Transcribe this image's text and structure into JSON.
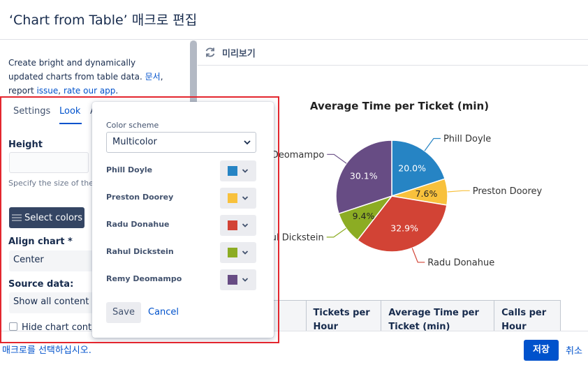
{
  "dialog": {
    "title": "‘Chart from Table’ 매크로 편집"
  },
  "left_panel": {
    "description": {
      "line1": "Create bright and dynamically",
      "line2_prefix": "updated charts from table data. ",
      "doc_link": "문서",
      "line2_suffix": ",",
      "line3_prefix": "report ",
      "issue_link": "issue",
      "line3_sep": ", ",
      "rate_link": "rate our app",
      "line3_suffix": "."
    },
    "tabs": [
      {
        "label": "Settings",
        "active": false
      },
      {
        "label": "Look",
        "active": true
      },
      {
        "label": "A",
        "active": false
      }
    ],
    "height": {
      "label": "Height",
      "value": ""
    },
    "height_help": "Specify the size of the chart in pixels. Leave empty, the chart will fit",
    "select_colors_label": "Select colors",
    "align_chart": {
      "label": "Align chart *",
      "value": "Center"
    },
    "source_data": {
      "label": "Source data:",
      "value": "Show all content"
    },
    "hide_chart_controls_label": "Hide chart controls"
  },
  "preview": {
    "label": "미리보기",
    "icon": "refresh-icon"
  },
  "chart_data": {
    "type": "pie",
    "title": "Average Time per Ticket (min)",
    "slices": [
      {
        "name": "Phill Doyle",
        "value": 20.0,
        "color": "#2684c4"
      },
      {
        "name": "Preston Doorey",
        "value": 7.6,
        "color": "#f8c13c"
      },
      {
        "name": "Radu Donahue",
        "value": 32.9,
        "color": "#d24335"
      },
      {
        "name": "Rahul Dickstein",
        "value": 9.4,
        "color": "#8cac23"
      },
      {
        "name": "Remy Deomampo",
        "value": 30.1,
        "color": "#674c84"
      }
    ],
    "legend": "none",
    "labels": "outside-with-leader-lines",
    "value_format": "percent"
  },
  "table": {
    "headers": [
      "",
      "Tickets per Hour",
      "Average Time per Ticket (min)",
      "Calls per Hour"
    ]
  },
  "footer": {
    "hint": "매크로를 선택하십시오.",
    "save_label": "저장",
    "cancel_label": "취소"
  },
  "color_popup": {
    "scheme_label": "Color scheme",
    "scheme_value": "Multicolor",
    "series": [
      {
        "name": "Phill Doyle",
        "color": "#2684c4"
      },
      {
        "name": "Preston Doorey",
        "color": "#f8c13c"
      },
      {
        "name": "Radu Donahue",
        "color": "#d24335"
      },
      {
        "name": "Rahul Dickstein",
        "color": "#8cac23"
      },
      {
        "name": "Remy Deomampo",
        "color": "#674c84"
      }
    ],
    "save_label": "Save",
    "cancel_label": "Cancel"
  },
  "colors": {
    "accent": "#0052cc",
    "highlight_border": "#e3262e"
  }
}
